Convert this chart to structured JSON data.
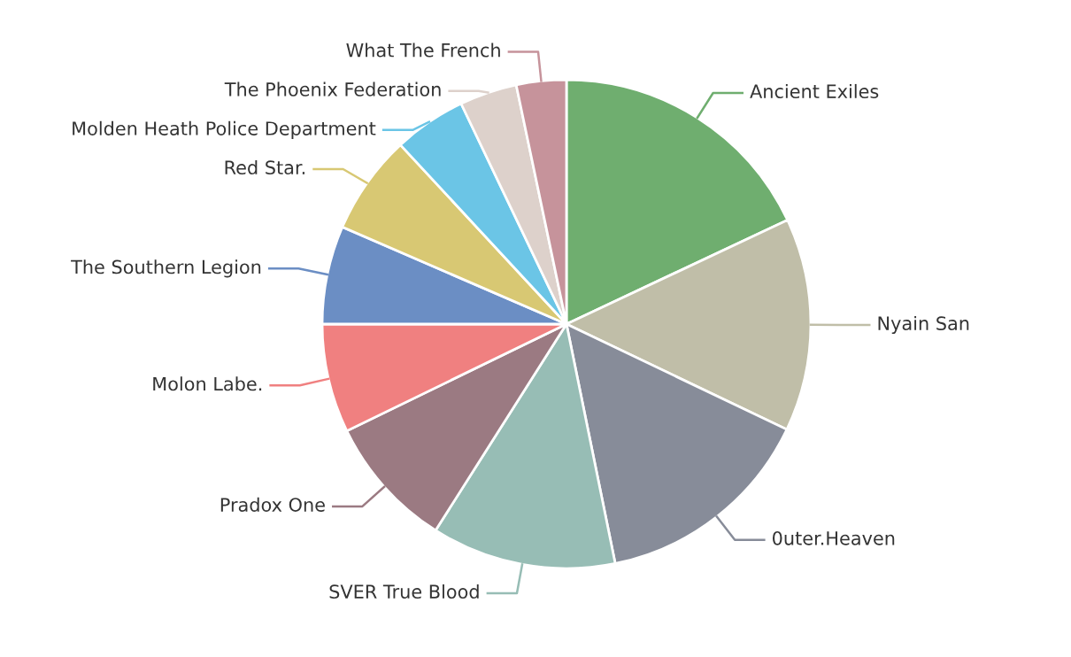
{
  "chart_data": {
    "type": "pie",
    "categories": [
      "Ancient Exiles",
      "Nyain San",
      "0uter.Heaven",
      "SVER True Blood",
      "Pradox One",
      "Molon Labe.",
      "The Southern Legion",
      "Red Star.",
      "Molden Heath Police Department",
      "The Phoenix Federation",
      "What The French"
    ],
    "values": [
      18.0,
      14.1,
      14.7,
      12.2,
      8.8,
      7.2,
      6.5,
      6.6,
      4.8,
      3.8,
      3.3
    ],
    "colors": [
      "#6fae6f",
      "#c0bea8",
      "#878c99",
      "#97bdb5",
      "#9b7a82",
      "#f08080",
      "#6b8ec4",
      "#d8c873",
      "#6bc5e6",
      "#ddd1cb",
      "#c6939b"
    ],
    "legend": false
  }
}
